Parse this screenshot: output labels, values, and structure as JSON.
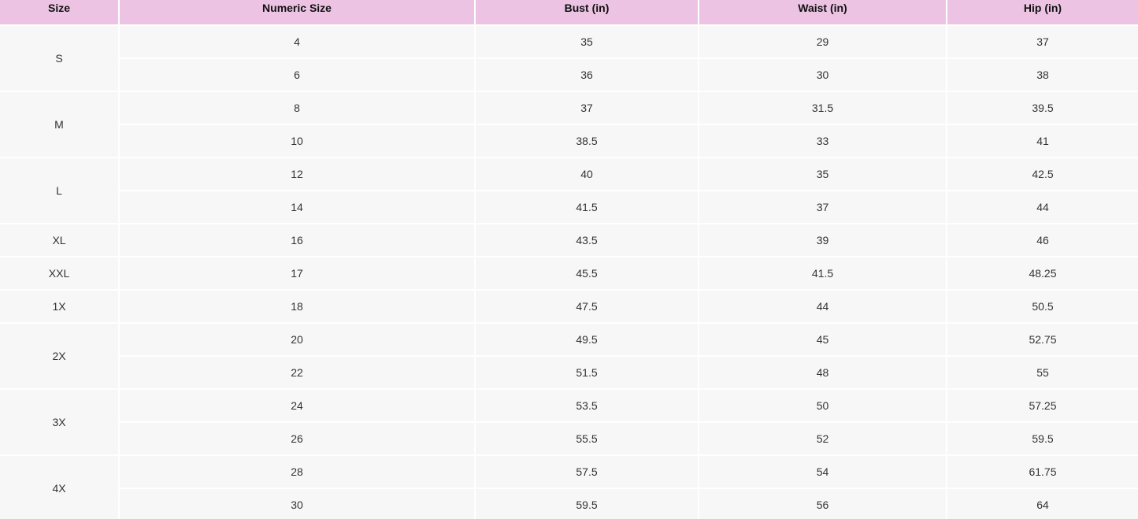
{
  "table": {
    "header": [
      "Size",
      "Numeric Size",
      "Bust (in)",
      "Waist (in)",
      "Hip (in)"
    ],
    "groups": [
      {
        "size": "S",
        "rows": [
          [
            4,
            35,
            29,
            37
          ],
          [
            6,
            36,
            30,
            38
          ]
        ]
      },
      {
        "size": "M",
        "rows": [
          [
            8,
            37,
            31.5,
            39.5
          ],
          [
            10,
            38.5,
            33,
            41
          ]
        ]
      },
      {
        "size": "L",
        "rows": [
          [
            12,
            40,
            35,
            42.5
          ],
          [
            14,
            41.5,
            37,
            44
          ]
        ]
      },
      {
        "size": "XL",
        "rows": [
          [
            16,
            43.5,
            39,
            46
          ]
        ]
      },
      {
        "size": "XXL",
        "rows": [
          [
            17,
            45.5,
            41.5,
            48.25
          ]
        ]
      },
      {
        "size": "1X",
        "rows": [
          [
            18,
            47.5,
            44,
            50.5
          ]
        ]
      },
      {
        "size": "2X",
        "rows": [
          [
            20,
            49.5,
            45,
            52.75
          ],
          [
            22,
            51.5,
            48,
            55
          ]
        ]
      },
      {
        "size": "3X",
        "rows": [
          [
            24,
            53.5,
            50,
            57.25
          ],
          [
            26,
            55.5,
            52,
            59.5
          ]
        ]
      },
      {
        "size": "4X",
        "rows": [
          [
            28,
            57.5,
            54,
            61.75
          ],
          [
            30,
            59.5,
            56,
            64
          ]
        ]
      }
    ]
  }
}
